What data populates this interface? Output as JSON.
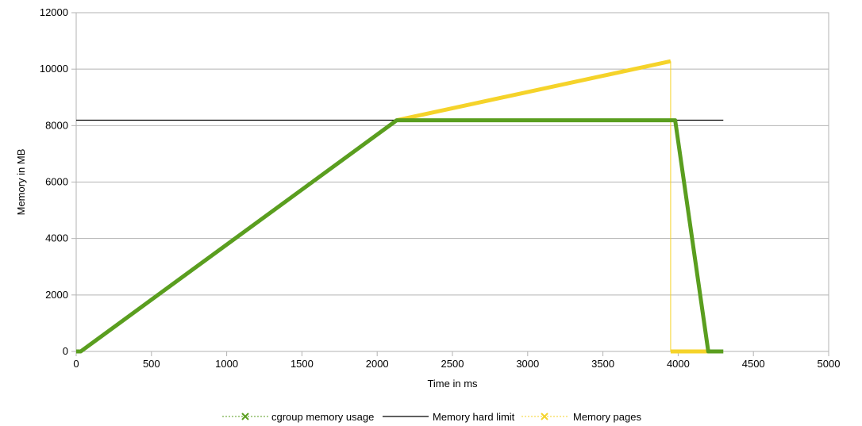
{
  "chart_data": {
    "type": "line",
    "xlabel": "Time in ms",
    "ylabel": "Memory in MB",
    "xlim": [
      0,
      5000
    ],
    "ylim": [
      0,
      12000
    ],
    "x_ticks": [
      0,
      500,
      1000,
      1500,
      2000,
      2500,
      3000,
      3500,
      4000,
      4500,
      5000
    ],
    "y_ticks": [
      0,
      2000,
      4000,
      6000,
      8000,
      10000,
      12000
    ],
    "grid": "horizontal",
    "legend_position": "bottom",
    "series": [
      {
        "name": "cgroup memory usage",
        "color": "#5a9e1f",
        "marker": "x-icon",
        "points": [
          [
            0,
            0
          ],
          [
            30,
            0
          ],
          [
            2130,
            8190
          ],
          [
            3980,
            8190
          ],
          [
            4200,
            0
          ],
          [
            4300,
            0
          ]
        ]
      },
      {
        "name": "Memory hard limit",
        "color": "#000000",
        "marker": "none",
        "points": [
          [
            0,
            8192
          ],
          [
            4300,
            8192
          ]
        ]
      },
      {
        "name": "Memory pages",
        "color": "#f5d32a",
        "marker": "x-icon",
        "points": [
          [
            2130,
            8190
          ],
          [
            3950,
            10280
          ],
          [
            3950,
            0
          ],
          [
            4200,
            0
          ]
        ]
      }
    ]
  }
}
